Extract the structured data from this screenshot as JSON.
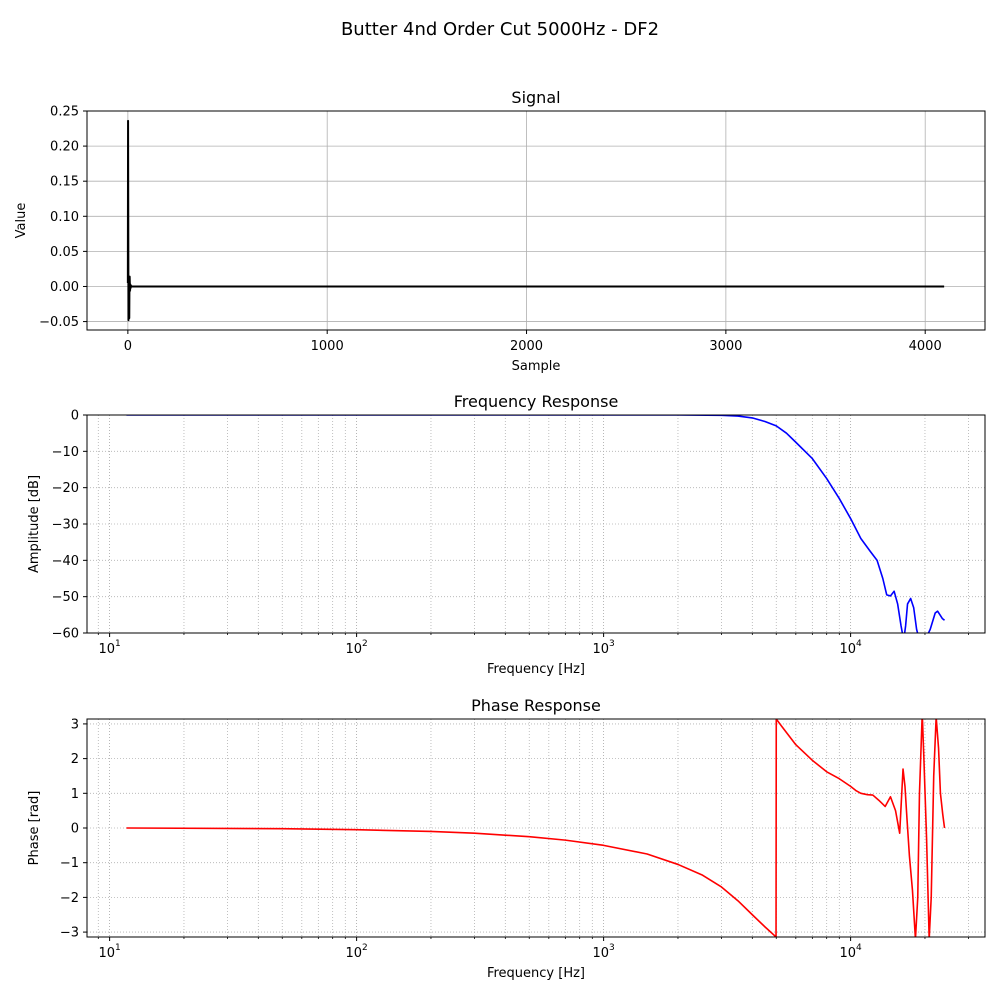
{
  "figure_title": "Butter 4nd Order Cut 5000Hz - DF2",
  "chart_data": [
    {
      "type": "line",
      "title": "Signal",
      "xlabel": "Sample",
      "ylabel": "Value",
      "xscale": "linear",
      "xlim": [
        -205,
        4300
      ],
      "ylim": [
        -0.062,
        0.25
      ],
      "xticks": [
        0,
        1000,
        2000,
        3000,
        4000
      ],
      "xtick_labels": [
        "0",
        "1000",
        "2000",
        "3000",
        "4000"
      ],
      "yticks": [
        -0.05,
        0,
        0.05,
        0.1,
        0.15,
        0.2,
        0.25
      ],
      "ytick_labels": [
        "−0.05",
        "0.00",
        "0.05",
        "0.10",
        "0.15",
        "0.20",
        "0.25"
      ],
      "grid": "solid",
      "series": [
        {
          "color": "#000000",
          "x": [
            0,
            1,
            2,
            3,
            4,
            5,
            6,
            7,
            8,
            9,
            10,
            11,
            12,
            13,
            14,
            15,
            16,
            18,
            20,
            25,
            30,
            4095
          ],
          "y": [
            0.005,
            0.236,
            0.1,
            -0.048,
            -0.03,
            0.012,
            0.004,
            -0.045,
            0.008,
            0.014,
            0.002,
            -0.006,
            0.003,
            0.001,
            -0.002,
            0.0015,
            0.0,
            0.0005,
            0.0,
            0.0,
            0.0,
            0.0
          ]
        }
      ]
    },
    {
      "type": "line",
      "title": "Frequency Response",
      "xlabel": "Frequency [Hz]",
      "ylabel": "Amplitude [dB]",
      "xscale": "log",
      "xlim": [
        8.1,
        35000
      ],
      "ylim": [
        -60,
        0
      ],
      "xticks": [
        10,
        100,
        1000,
        10000
      ],
      "xtick_labels": [
        "10",
        "10",
        "10",
        "10"
      ],
      "xtick_exponents": [
        "1",
        "2",
        "3",
        "4"
      ],
      "yticks": [
        -60,
        -50,
        -40,
        -30,
        -20,
        -10,
        0
      ],
      "ytick_labels": [
        "−60",
        "−50",
        "−40",
        "−30",
        "−20",
        "−10",
        "0"
      ],
      "grid": "dotted",
      "series": [
        {
          "color": "#0000ff",
          "x": [
            11.7,
            100,
            1000,
            2000,
            3000,
            3500,
            4000,
            4500,
            5000,
            5500,
            6000,
            7000,
            8000,
            9000,
            10000,
            11000,
            12000,
            12800,
            13500,
            14000,
            14500,
            15000,
            15500,
            16000,
            16400,
            16700,
            17000,
            17500,
            18000,
            18500,
            19000,
            20000,
            21000,
            22000,
            22500,
            23000,
            23500,
            24000
          ],
          "y": [
            0,
            0,
            0,
            0,
            -0.1,
            -0.3,
            -0.8,
            -1.8,
            -3.0,
            -5.0,
            -7.5,
            -12.0,
            -17.5,
            -23.0,
            -28.5,
            -34.0,
            -37.5,
            -40.0,
            -45.0,
            -49.5,
            -49.8,
            -48.5,
            -52.0,
            -58.0,
            -62.0,
            -58.0,
            -52.0,
            -50.5,
            -53.0,
            -59.0,
            -62.0,
            -62.0,
            -59.0,
            -54.5,
            -54.0,
            -55.0,
            -56.0,
            -56.5
          ]
        }
      ]
    },
    {
      "type": "line",
      "title": "Phase Response",
      "xlabel": "Frequency [Hz]",
      "ylabel": "Phase [rad]",
      "xscale": "log",
      "xlim": [
        8.1,
        35000
      ],
      "ylim": [
        -3.1416,
        3.1416
      ],
      "xticks": [
        10,
        100,
        1000,
        10000
      ],
      "xtick_labels": [
        "10",
        "10",
        "10",
        "10"
      ],
      "xtick_exponents": [
        "1",
        "2",
        "3",
        "4"
      ],
      "yticks": [
        -3,
        -2,
        -1,
        0,
        1,
        2,
        3
      ],
      "ytick_labels": [
        "−3",
        "−2",
        "−1",
        "0",
        "1",
        "2",
        "3"
      ],
      "grid": "dotted",
      "series": [
        {
          "color": "#ff0000",
          "x": [
            11.7,
            50,
            100,
            200,
            300,
            500,
            700,
            1000,
            1500,
            2000,
            2500,
            3000,
            3500,
            4000,
            4500,
            4990,
            5000,
            5300,
            6000,
            7000,
            8000,
            9000,
            10000,
            10500,
            11000,
            11700,
            12300,
            13000,
            13800,
            14500,
            15200,
            15800,
            16300,
            16600,
            16900,
            17300,
            17800,
            18300,
            18700,
            19000,
            19500,
            19800,
            20300,
            20800,
            21200,
            21700,
            22200,
            22700,
            23100,
            23600,
            24000
          ],
          "y": [
            0.0,
            -0.02,
            -0.05,
            -0.1,
            -0.15,
            -0.25,
            -0.35,
            -0.5,
            -0.75,
            -1.05,
            -1.35,
            -1.7,
            -2.1,
            -2.5,
            -2.85,
            -3.14,
            3.14,
            2.9,
            2.4,
            1.95,
            1.62,
            1.42,
            1.2,
            1.08,
            1.0,
            0.96,
            0.95,
            0.8,
            0.62,
            0.9,
            0.5,
            -0.15,
            1.7,
            1.2,
            0.3,
            -0.8,
            -1.8,
            -3.2,
            -2.0,
            1.0,
            3.3,
            2.0,
            -0.3,
            -3.2,
            -2.0,
            1.5,
            3.2,
            2.3,
            1.0,
            0.4,
            0.0
          ]
        }
      ]
    }
  ]
}
